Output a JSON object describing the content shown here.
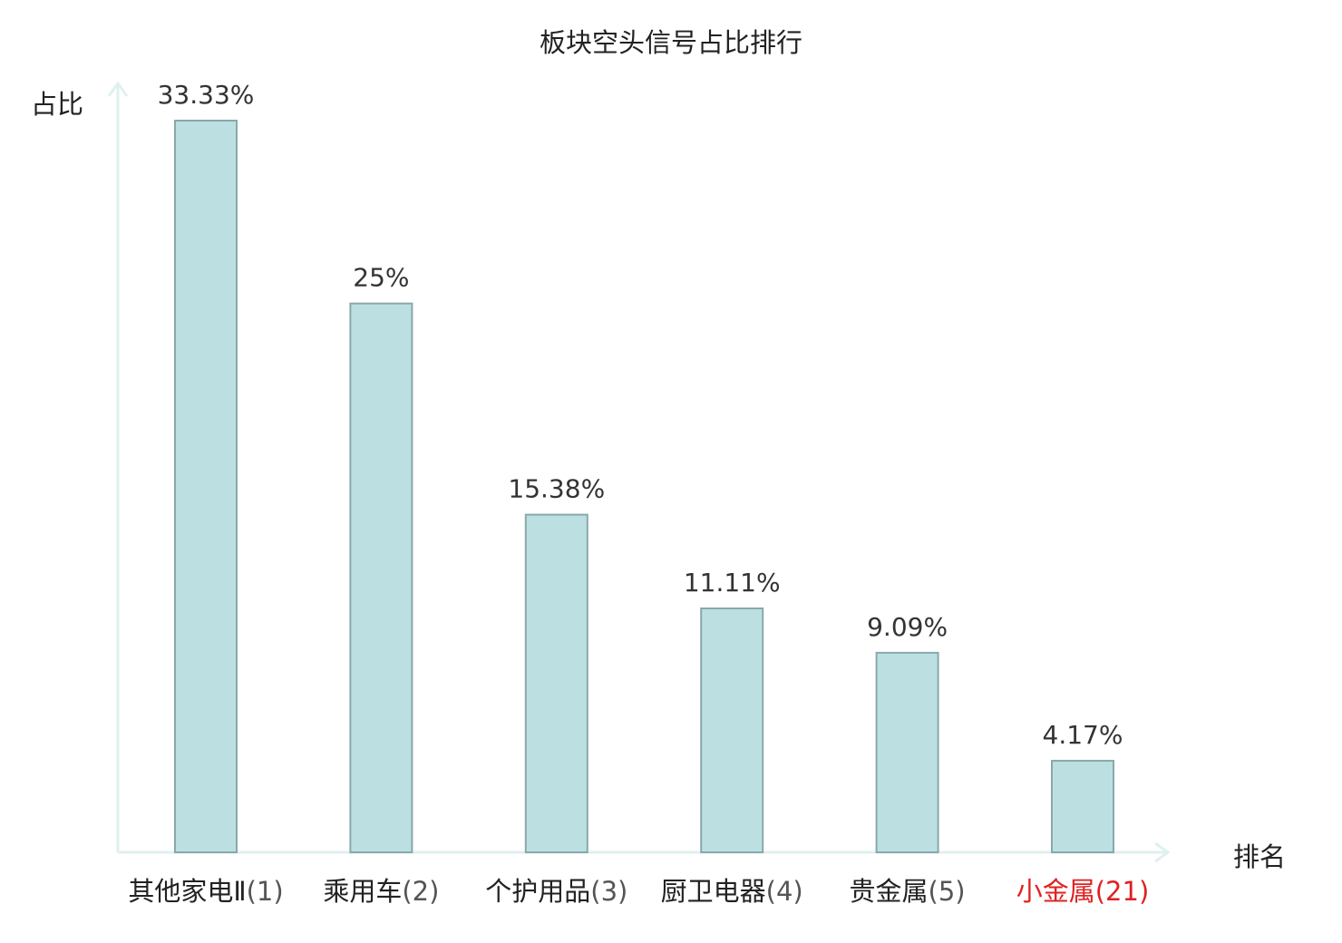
{
  "chart_data": {
    "type": "bar",
    "title": "板块空头信号占比排行",
    "ylabel": "占比",
    "xlabel": "排名",
    "ylim": [
      0,
      34.9
    ],
    "grid": false,
    "categories": [
      {
        "name": "其他家电Ⅱ",
        "rank": "(1)",
        "value": 33.33,
        "label": "33.33%",
        "highlight": false
      },
      {
        "name": "乘用车",
        "rank": "(2)",
        "value": 25,
        "label": "25%",
        "highlight": false
      },
      {
        "name": "个护用品",
        "rank": "(3)",
        "value": 15.38,
        "label": "15.38%",
        "highlight": false
      },
      {
        "name": "厨卫电器",
        "rank": "(4)",
        "value": 11.11,
        "label": "11.11%",
        "highlight": false
      },
      {
        "name": "贵金属",
        "rank": "(5)",
        "value": 9.09,
        "label": "9.09%",
        "highlight": false
      },
      {
        "name": "小金属",
        "rank": "(21)",
        "value": 4.17,
        "label": "4.17%",
        "highlight": true
      }
    ],
    "colors": {
      "bar_fill": "#bce0e2",
      "bar_stroke": "#8aa8aa",
      "axis": "#dff1ef",
      "highlight": "#e02020"
    }
  }
}
